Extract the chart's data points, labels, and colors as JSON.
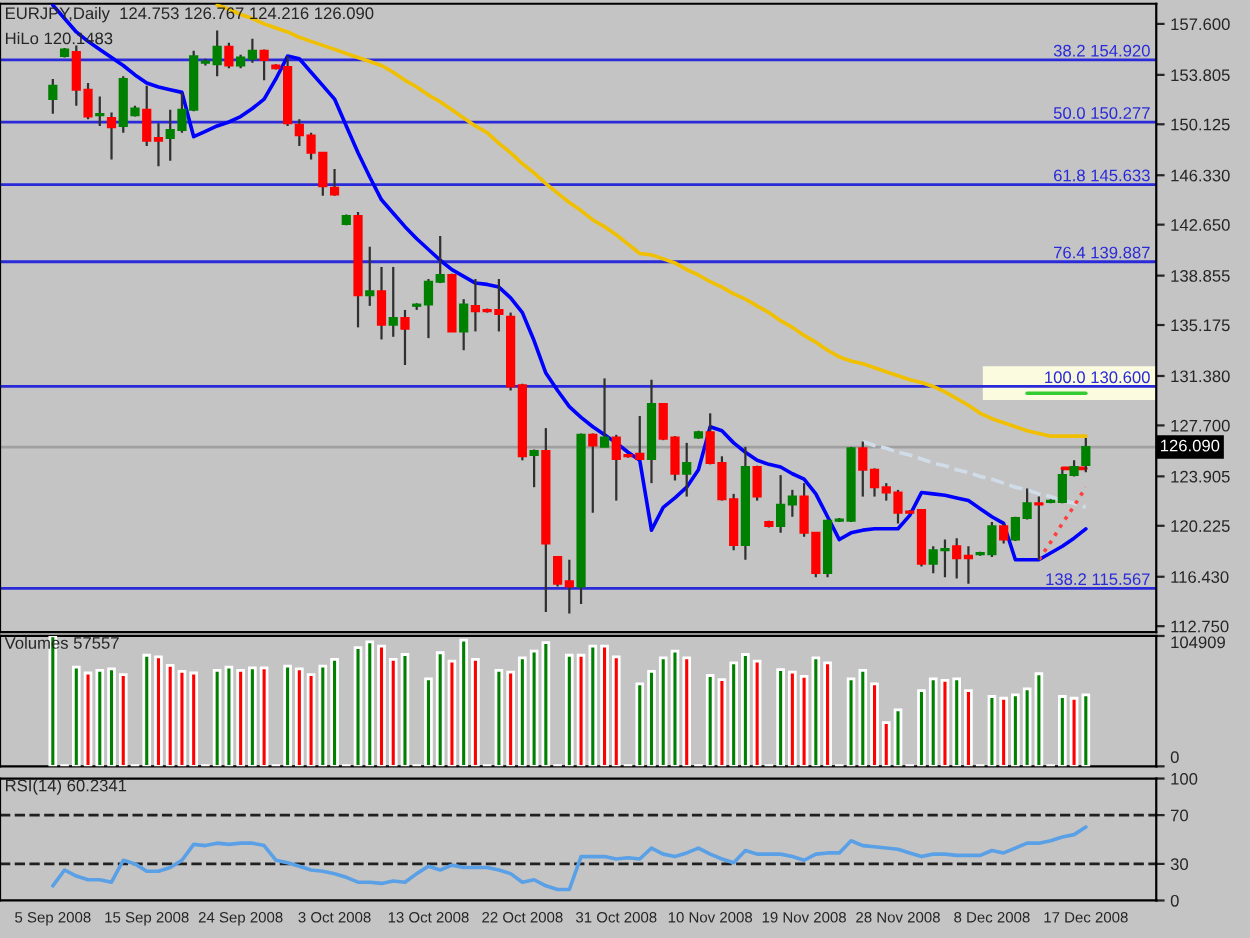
{
  "chart_data": [
    {
      "type": "candlestick",
      "title": "EURJPY,Daily  124.753 126.767 124.216 126.090",
      "subtitle": "HiLo 120.1483",
      "categories": [
        null,
        null,
        null,
        null,
        null,
        null,
        null,
        null,
        null,
        null,
        null,
        null,
        null,
        null,
        null,
        null,
        null,
        null,
        null,
        null,
        null,
        null,
        null,
        null,
        null,
        null,
        null,
        null,
        null,
        null,
        null,
        null,
        null,
        null,
        null,
        null,
        null,
        null,
        null,
        null,
        null,
        null,
        null,
        null,
        null,
        null,
        null,
        null,
        null,
        null,
        null,
        null,
        null,
        null,
        null,
        null,
        null,
        null,
        null,
        null,
        null,
        null,
        null,
        null,
        null,
        null,
        null,
        null,
        null,
        null,
        null,
        null,
        null,
        null,
        null,
        null,
        null,
        null,
        null,
        null,
        null,
        null,
        null,
        null,
        null,
        null,
        null,
        null,
        null
      ],
      "tick_labels": "y",
      "ohlc": [
        [
          152.0,
          153.5,
          150.9,
          153.0
        ],
        [
          155.2,
          155.8,
          155.1,
          155.7
        ],
        [
          155.5,
          156.0,
          151.5,
          152.7
        ],
        [
          152.7,
          153.2,
          150.5,
          150.7
        ],
        [
          150.8,
          152.2,
          150.0,
          150.9
        ],
        [
          150.6,
          151.0,
          147.5,
          149.9
        ],
        [
          150.0,
          153.7,
          149.5,
          153.5
        ],
        [
          150.8,
          151.5,
          150.7,
          151.3
        ],
        [
          151.2,
          153.0,
          148.5,
          148.9
        ],
        [
          149.1,
          150.2,
          147.0,
          148.9
        ],
        [
          149.1,
          151.2,
          147.4,
          149.7
        ],
        [
          149.7,
          152.5,
          149.5,
          151.2
        ],
        [
          151.2,
          155.6,
          151.1,
          155.2
        ],
        [
          154.7,
          155.0,
          154.5,
          154.8
        ],
        [
          154.6,
          157.1,
          153.7,
          155.9
        ],
        [
          155.9,
          156.2,
          154.3,
          154.5
        ],
        [
          154.5,
          155.3,
          154.3,
          155.1
        ],
        [
          155.0,
          156.5,
          154.7,
          155.6
        ],
        [
          155.6,
          155.7,
          153.4,
          154.9
        ],
        [
          154.5,
          154.6,
          154.2,
          154.3
        ],
        [
          154.4,
          155.2,
          150.0,
          150.2
        ],
        [
          150.1,
          150.5,
          148.5,
          149.3
        ],
        [
          149.3,
          149.5,
          147.5,
          148.0
        ],
        [
          148.0,
          148.0,
          144.8,
          145.5
        ],
        [
          145.4,
          146.8,
          144.8,
          144.9
        ],
        [
          142.7,
          143.4,
          142.6,
          143.3
        ],
        [
          143.3,
          143.6,
          135.0,
          137.4
        ],
        [
          137.4,
          141.0,
          136.6,
          137.7
        ],
        [
          137.7,
          139.5,
          134.1,
          135.2
        ],
        [
          135.2,
          139.5,
          134.3,
          135.7
        ],
        [
          135.7,
          136.3,
          132.2,
          134.9
        ],
        [
          136.6,
          136.8,
          136.3,
          136.7
        ],
        [
          136.7,
          138.6,
          134.2,
          138.4
        ],
        [
          138.4,
          141.8,
          138.3,
          138.9
        ],
        [
          138.9,
          139.0,
          134.7,
          134.7
        ],
        [
          134.7,
          137.1,
          133.3,
          136.7
        ],
        [
          136.6,
          138.6,
          134.7,
          136.2
        ],
        [
          136.3,
          136.4,
          136.1,
          136.2
        ],
        [
          136.3,
          138.6,
          134.7,
          136.0
        ],
        [
          135.8,
          136.1,
          130.3,
          130.6
        ],
        [
          130.7,
          130.8,
          125.1,
          125.4
        ],
        [
          125.5,
          125.9,
          123.1,
          125.8
        ],
        [
          125.8,
          127.5,
          113.8,
          118.9
        ],
        [
          117.9,
          117.9,
          115.7,
          115.9
        ],
        [
          116.1,
          117.7,
          113.7,
          115.7
        ],
        [
          115.7,
          127.1,
          114.4,
          127.0
        ],
        [
          127.0,
          127.1,
          121.2,
          126.2
        ],
        [
          126.1,
          131.2,
          126.1,
          126.8
        ],
        [
          126.8,
          127.0,
          122.1,
          125.2
        ],
        [
          125.5,
          125.6,
          125.3,
          125.4
        ],
        [
          125.6,
          128.4,
          125.1,
          125.2
        ],
        [
          125.2,
          131.1,
          123.4,
          129.3
        ],
        [
          129.3,
          129.3,
          126.6,
          126.7
        ],
        [
          126.8,
          126.9,
          123.6,
          124.1
        ],
        [
          124.1,
          126.4,
          122.4,
          124.9
        ],
        [
          126.8,
          127.3,
          126.7,
          127.2
        ],
        [
          127.2,
          128.6,
          124.8,
          124.9
        ],
        [
          124.9,
          125.4,
          122.1,
          122.2
        ],
        [
          122.2,
          122.6,
          118.4,
          118.8
        ],
        [
          118.8,
          126.1,
          117.7,
          124.6
        ],
        [
          124.6,
          124.7,
          122.1,
          122.4
        ],
        [
          120.5,
          120.6,
          120.1,
          120.2
        ],
        [
          120.2,
          124.0,
          119.7,
          121.8
        ],
        [
          121.8,
          122.9,
          120.9,
          122.4
        ],
        [
          122.4,
          123.4,
          119.4,
          119.7
        ],
        [
          119.7,
          119.7,
          116.4,
          116.7
        ],
        [
          116.7,
          120.7,
          116.4,
          120.6
        ],
        [
          120.6,
          120.8,
          120.5,
          120.7
        ],
        [
          120.6,
          126.1,
          120.5,
          126.0
        ],
        [
          126.0,
          126.5,
          122.4,
          124.4
        ],
        [
          124.4,
          124.5,
          122.4,
          123.1
        ],
        [
          123.1,
          123.4,
          122.1,
          122.7
        ],
        [
          122.7,
          122.9,
          120.4,
          121.2
        ],
        [
          121.3,
          121.4,
          121.1,
          121.2
        ],
        [
          121.4,
          121.4,
          117.2,
          117.4
        ],
        [
          117.4,
          118.7,
          116.7,
          118.4
        ],
        [
          118.4,
          119.2,
          116.4,
          118.5
        ],
        [
          118.7,
          119.3,
          116.3,
          117.8
        ],
        [
          118.0,
          118.7,
          115.9,
          117.8
        ],
        [
          118.1,
          118.3,
          118.0,
          118.2
        ],
        [
          118.1,
          120.5,
          117.9,
          120.2
        ],
        [
          120.2,
          120.4,
          118.9,
          119.2
        ],
        [
          119.2,
          120.9,
          119.1,
          120.8
        ],
        [
          120.8,
          123.0,
          120.7,
          121.9
        ],
        [
          121.9,
          122.4,
          117.7,
          121.8
        ],
        [
          122.0,
          122.2,
          121.9,
          122.1
        ],
        [
          122.0,
          124.4,
          121.9,
          124.0
        ],
        [
          124.0,
          125.1,
          123.9,
          124.6
        ],
        [
          124.753,
          126.767,
          124.216,
          126.09
        ]
      ],
      "colors": [
        "#008000",
        "#008000",
        "#ff0000",
        "#ff0000",
        "#008000",
        "#ff0000",
        "#008000",
        "#008000",
        "#ff0000",
        "#ff0000",
        "#008000",
        "#008000",
        "#008000",
        "#008000",
        "#008000",
        "#ff0000",
        "#008000",
        "#008000",
        "#ff0000",
        "#ff0000",
        "#ff0000",
        "#ff0000",
        "#ff0000",
        "#ff0000",
        "#ff0000",
        "#008000",
        "#ff0000",
        "#008000",
        "#ff0000",
        "#008000",
        "#ff0000",
        "#008000",
        "#008000",
        "#008000",
        "#ff0000",
        "#008000",
        "#ff0000",
        "#ff0000",
        "#ff0000",
        "#ff0000",
        "#ff0000",
        "#008000",
        "#ff0000",
        "#ff0000",
        "#ff0000",
        "#008000",
        "#ff0000",
        "#008000",
        "#ff0000",
        "#ff0000",
        "#ff0000",
        "#008000",
        "#ff0000",
        "#ff0000",
        "#008000",
        "#008000",
        "#ff0000",
        "#ff0000",
        "#ff0000",
        "#008000",
        "#ff0000",
        "#ff0000",
        "#008000",
        "#008000",
        "#ff0000",
        "#ff0000",
        "#008000",
        "#008000",
        "#008000",
        "#ff0000",
        "#ff0000",
        "#ff0000",
        "#ff0000",
        "#ff0000",
        "#ff0000",
        "#008000",
        "#008000",
        "#ff0000",
        "#ff0000",
        "#008000",
        "#008000",
        "#ff0000",
        "#008000",
        "#008000",
        "#ff0000",
        "#008000",
        "#008000",
        "#008000",
        "#008000"
      ],
      "series": [
        {
          "type": "line",
          "color": "#0000ff",
          "values": [
            159.0,
            158.0,
            157.0,
            156.3,
            155.7,
            155.1,
            154.5,
            153.8,
            153.2,
            152.9,
            152.7,
            152.5,
            149.2,
            149.6,
            150.0,
            150.3,
            150.7,
            151.3,
            152.0,
            153.5,
            155.2,
            155.0,
            154.0,
            153.0,
            152.0,
            150.0,
            148.0,
            146.2,
            144.5,
            143.5,
            142.5,
            141.6,
            140.8,
            140.0,
            139.3,
            138.8,
            138.3,
            138.2,
            138.0,
            137.2,
            136.1,
            134.0,
            131.6,
            130.3,
            129.1,
            128.3,
            127.6,
            127.0,
            126.4,
            125.7,
            125.1,
            119.9,
            121.6,
            122.3,
            123.1,
            124.4,
            127.6,
            127.3,
            126.4,
            125.7,
            125.1,
            124.8,
            124.6,
            124.1,
            123.7,
            122.6,
            120.9,
            119.2,
            119.7,
            119.9,
            120.0,
            120.0,
            120.0,
            121.0,
            122.7,
            122.6,
            122.5,
            122.3,
            122.1,
            121.5,
            120.9,
            120.4,
            117.7,
            117.7,
            117.7,
            118.2,
            118.7,
            119.3,
            120.0
          ]
        },
        {
          "type": "line",
          "color": "#f0c000",
          "values": [
            null,
            null,
            null,
            null,
            null,
            null,
            null,
            null,
            null,
            null,
            null,
            null,
            null,
            null,
            159.0,
            158.7,
            158.3,
            158.0,
            157.6,
            157.3,
            157.0,
            156.6,
            156.3,
            156.0,
            155.7,
            155.4,
            155.1,
            154.8,
            154.5,
            154.0,
            153.4,
            152.9,
            152.3,
            151.8,
            151.2,
            150.6,
            150.0,
            149.5,
            148.7,
            148.0,
            147.2,
            146.5,
            145.7,
            145.0,
            144.3,
            143.7,
            143.0,
            142.5,
            141.9,
            141.2,
            140.5,
            140.4,
            140.1,
            139.8,
            139.3,
            138.9,
            138.4,
            138.0,
            137.5,
            137.1,
            136.6,
            136.1,
            135.5,
            135.0,
            134.4,
            133.9,
            133.3,
            132.8,
            132.5,
            132.3,
            132.0,
            131.7,
            131.4,
            131.1,
            130.9,
            130.6,
            130.2,
            129.7,
            129.2,
            128.6,
            128.2,
            127.9,
            127.6,
            127.3,
            127.1,
            126.9,
            126.9,
            126.9,
            126.9
          ]
        },
        {
          "type": "line",
          "color": "#d0dce8",
          "line_style": "dashed",
          "values": [
            null,
            null,
            null,
            null,
            null,
            null,
            null,
            null,
            null,
            null,
            null,
            null,
            null,
            null,
            null,
            null,
            null,
            null,
            null,
            null,
            null,
            null,
            null,
            null,
            null,
            null,
            null,
            null,
            null,
            null,
            null,
            null,
            null,
            null,
            null,
            null,
            null,
            null,
            null,
            null,
            null,
            null,
            null,
            null,
            null,
            null,
            null,
            null,
            null,
            null,
            null,
            null,
            null,
            null,
            null,
            null,
            null,
            null,
            null,
            null,
            null,
            null,
            null,
            null,
            null,
            null,
            null,
            null,
            null,
            126.5,
            126.2,
            126.0,
            125.7,
            125.5,
            125.2,
            124.9,
            124.7,
            124.4,
            124.2,
            123.9,
            123.7,
            123.4,
            123.1,
            122.9,
            122.6,
            122.4,
            122.1,
            121.9,
            121.6
          ]
        },
        {
          "type": "line",
          "color": "#33cc33",
          "values": [
            null,
            null,
            null,
            null,
            null,
            null,
            null,
            null,
            null,
            null,
            null,
            null,
            null,
            null,
            null,
            null,
            null,
            null,
            null,
            null,
            null,
            null,
            null,
            null,
            null,
            null,
            null,
            null,
            null,
            null,
            null,
            null,
            null,
            null,
            null,
            null,
            null,
            null,
            null,
            null,
            null,
            null,
            null,
            null,
            null,
            null,
            null,
            null,
            null,
            null,
            null,
            null,
            null,
            null,
            null,
            null,
            null,
            null,
            null,
            null,
            null,
            null,
            null,
            null,
            null,
            null,
            null,
            null,
            null,
            null,
            null,
            null,
            null,
            null,
            null,
            null,
            null,
            null,
            null,
            null,
            null,
            null,
            null,
            130.1,
            130.1,
            130.1,
            130.1,
            130.1,
            130.1
          ]
        },
        {
          "type": "line",
          "color": "#ff0000",
          "values": [
            null,
            null,
            null,
            null,
            null,
            null,
            null,
            null,
            null,
            null,
            null,
            null,
            null,
            null,
            null,
            null,
            null,
            null,
            null,
            null,
            null,
            null,
            null,
            null,
            null,
            null,
            null,
            null,
            null,
            null,
            null,
            null,
            null,
            null,
            null,
            null,
            null,
            null,
            null,
            null,
            null,
            null,
            null,
            null,
            null,
            null,
            null,
            null,
            null,
            null,
            null,
            null,
            null,
            null,
            null,
            null,
            null,
            null,
            null,
            null,
            null,
            null,
            null,
            null,
            null,
            null,
            null,
            null,
            null,
            null,
            null,
            null,
            null,
            null,
            null,
            null,
            null,
            null,
            null,
            null,
            null,
            null,
            null,
            null,
            null,
            null,
            124.5,
            124.5,
            124.5
          ]
        },
        {
          "type": "line",
          "color": "#ff4040",
          "line_style": "dotted",
          "values": [
            null,
            null,
            null,
            null,
            null,
            null,
            null,
            null,
            null,
            null,
            null,
            null,
            null,
            null,
            null,
            null,
            null,
            null,
            null,
            null,
            null,
            null,
            null,
            null,
            null,
            null,
            null,
            null,
            null,
            null,
            null,
            null,
            null,
            null,
            null,
            null,
            null,
            null,
            null,
            null,
            null,
            null,
            null,
            null,
            null,
            null,
            null,
            null,
            null,
            null,
            null,
            null,
            null,
            null,
            null,
            null,
            null,
            null,
            null,
            null,
            null,
            null,
            null,
            null,
            null,
            null,
            null,
            null,
            null,
            null,
            null,
            null,
            null,
            null,
            null,
            null,
            null,
            null,
            null,
            null,
            null,
            null,
            null,
            null,
            117.7,
            119.0,
            120.4,
            121.7,
            123.1
          ]
        }
      ],
      "ylim": [
        112.3,
        159.1
      ],
      "yticks": [
        {
          "value": 157.6,
          "label": "157.600"
        },
        {
          "value": 153.805,
          "label": "153.805"
        },
        {
          "value": 150.125,
          "label": "150.125"
        },
        {
          "value": 146.33,
          "label": "146.330"
        },
        {
          "value": 142.65,
          "label": "142.650"
        },
        {
          "value": 138.855,
          "label": "138.855"
        },
        {
          "value": 135.175,
          "label": "135.175"
        },
        {
          "value": 131.38,
          "label": "131.380"
        },
        {
          "value": 127.7,
          "label": "127.700"
        },
        {
          "value": 123.905,
          "label": "123.905"
        },
        {
          "value": 120.225,
          "label": "120.225"
        },
        {
          "value": 116.43,
          "label": "116.430"
        },
        {
          "value": 112.75,
          "label": "112.750"
        }
      ],
      "bands": [
        {
          "axis": "y",
          "from": 129.6,
          "to": 132.1,
          "color": "#fbfbe0"
        }
      ],
      "ref_lines": [
        {
          "axis": "y",
          "value": 154.92,
          "label": "38.2 154.920",
          "color": "#2a2ad8"
        },
        {
          "axis": "y",
          "value": 150.277,
          "label": "50.0 150.277",
          "color": "#2a2ad8"
        },
        {
          "axis": "y",
          "value": 145.633,
          "label": "61.8 145.633",
          "color": "#2a2ad8"
        },
        {
          "axis": "y",
          "value": 139.887,
          "label": "76.4 139.887",
          "color": "#2a2ad8"
        },
        {
          "axis": "y",
          "value": 130.6,
          "label": "100.0 130.600",
          "color": "#2a2ad8"
        },
        {
          "axis": "y",
          "value": 115.567,
          "label": "138.2 115.567",
          "color": "#2a2ad8"
        },
        {
          "axis": "y",
          "value": 126.09,
          "label": "126.090",
          "color": "#a0a0a0"
        }
      ],
      "grid": false,
      "legend": false
    },
    {
      "type": "bar",
      "title": "Volumes 57557",
      "categories": [
        null,
        null,
        null,
        null,
        null,
        null,
        null,
        null,
        null,
        null,
        null,
        null,
        null,
        null,
        null,
        null,
        null,
        null,
        null,
        null,
        null,
        null,
        null,
        null,
        null,
        null,
        null,
        null,
        null,
        null,
        null,
        null,
        null,
        null,
        null,
        null,
        null,
        null,
        null,
        null,
        null,
        null,
        null,
        null,
        null,
        null,
        null,
        null,
        null,
        null,
        null,
        null,
        null,
        null,
        null,
        null,
        null,
        null,
        null,
        null,
        null,
        null,
        null,
        null,
        null,
        null,
        null,
        null,
        null,
        null,
        null,
        null,
        null,
        null,
        null,
        null,
        null,
        null,
        null,
        null,
        null,
        null,
        null,
        null,
        null,
        null,
        null,
        null,
        null
      ],
      "tick_labels": "y",
      "values": [
        104909,
        600,
        79900,
        75100,
        77200,
        78500,
        73800,
        600,
        89400,
        88000,
        81200,
        76500,
        75100,
        600,
        77200,
        79900,
        77200,
        79200,
        79200,
        600,
        80600,
        78500,
        73800,
        80600,
        86000,
        600,
        95500,
        100200,
        96800,
        86000,
        90000,
        600,
        70400,
        91400,
        84600,
        101600,
        86000,
        600,
        77200,
        75800,
        87300,
        92700,
        99500,
        600,
        89400,
        89400,
        96800,
        96800,
        88000,
        600,
        66300,
        76500,
        87300,
        92700,
        87300,
        600,
        73100,
        69700,
        83300,
        90000,
        84600,
        600,
        77900,
        75800,
        72400,
        87300,
        83300,
        600,
        70400,
        77200,
        66300,
        35200,
        45400,
        600,
        60900,
        70400,
        69100,
        70400,
        60900,
        600,
        56200,
        54800,
        57500,
        62300,
        74500,
        600,
        56200,
        54800,
        57557
      ],
      "colors": [
        "#008000",
        "#ff0000",
        "#008000",
        "#ff0000",
        "#008000",
        "#008000",
        "#ff0000",
        "#ff0000",
        "#008000",
        "#ff0000",
        "#ff0000",
        "#ff0000",
        "#ff0000",
        "#ff0000",
        "#008000",
        "#008000",
        "#ff0000",
        "#008000",
        "#ff0000",
        "#ff0000",
        "#008000",
        "#ff0000",
        "#ff0000",
        "#008000",
        "#008000",
        "#ff0000",
        "#008000",
        "#008000",
        "#ff0000",
        "#ff0000",
        "#008000",
        "#ff0000",
        "#008000",
        "#008000",
        "#ff0000",
        "#008000",
        "#ff0000",
        "#ff0000",
        "#008000",
        "#ff0000",
        "#008000",
        "#008000",
        "#008000",
        "#ff0000",
        "#008000",
        "#ff0000",
        "#008000",
        "#ff0000",
        "#ff0000",
        "#ff0000",
        "#008000",
        "#008000",
        "#008000",
        "#008000",
        "#ff0000",
        "#ff0000",
        "#008000",
        "#ff0000",
        "#008000",
        "#008000",
        "#ff0000",
        "#ff0000",
        "#008000",
        "#ff0000",
        "#ff0000",
        "#008000",
        "#ff0000",
        "#ff0000",
        "#008000",
        "#008000",
        "#ff0000",
        "#ff0000",
        "#008000",
        "#ff0000",
        "#008000",
        "#008000",
        "#ff0000",
        "#008000",
        "#ff0000",
        "#ff0000",
        "#008000",
        "#ff0000",
        "#008000",
        "#008000",
        "#008000",
        "#ff0000",
        "#008000",
        "#ff0000",
        "#008000"
      ],
      "ylim": [
        0,
        104909
      ],
      "yticks": [
        0,
        104909
      ],
      "grid": false,
      "legend": false
    },
    {
      "type": "line",
      "title": "RSI(14) 60.2341",
      "categories": [
        "5 Sep 2008",
        null,
        null,
        null,
        null,
        null,
        null,
        null,
        "15 Sep 2008",
        null,
        null,
        null,
        null,
        null,
        null,
        null,
        "24 Sep 2008",
        null,
        null,
        null,
        null,
        null,
        null,
        null,
        "3 Oct 2008",
        null,
        null,
        null,
        null,
        null,
        null,
        null,
        "13 Oct 2008",
        null,
        null,
        null,
        null,
        null,
        null,
        null,
        "22 Oct 2008",
        null,
        null,
        null,
        null,
        null,
        null,
        null,
        "31 Oct 2008",
        null,
        null,
        null,
        null,
        null,
        null,
        null,
        "10 Nov 2008",
        null,
        null,
        null,
        null,
        null,
        null,
        null,
        "19 Nov 2008",
        null,
        null,
        null,
        null,
        null,
        null,
        null,
        "28 Nov 2008",
        null,
        null,
        null,
        null,
        null,
        null,
        null,
        "8 Dec 2008",
        null,
        null,
        null,
        null,
        null,
        null,
        null,
        "17 Dec 2008"
      ],
      "series": [
        {
          "color": "#5aa0e6",
          "values": [
            12,
            25,
            20,
            17,
            17,
            15,
            33,
            30,
            24,
            24,
            27,
            33,
            46,
            45,
            47,
            46,
            47,
            47,
            45,
            33,
            31,
            28,
            25,
            24,
            22,
            19,
            15,
            15,
            14,
            16,
            15,
            22,
            28,
            25,
            29,
            27,
            27,
            27,
            25,
            22,
            15,
            17,
            12,
            9,
            9,
            36,
            36,
            36,
            34,
            35,
            34,
            43,
            38,
            36,
            39,
            43,
            38,
            34,
            31,
            41,
            38,
            38,
            38,
            36,
            33,
            38,
            39,
            39,
            49,
            45,
            44,
            43,
            42,
            39,
            36,
            38,
            38,
            37,
            37,
            37,
            41,
            39,
            43,
            47,
            47,
            49,
            52,
            54,
            60.2
          ]
        }
      ],
      "ylim": [
        0,
        100
      ],
      "yticks": [
        0,
        30,
        70,
        100
      ],
      "ref_lines": [
        {
          "axis": "y",
          "value": 70,
          "color": "#202020",
          "line_style": "dashed"
        },
        {
          "axis": "y",
          "value": 30,
          "color": "#202020",
          "line_style": "dashed"
        }
      ],
      "grid": false,
      "legend": false
    }
  ]
}
